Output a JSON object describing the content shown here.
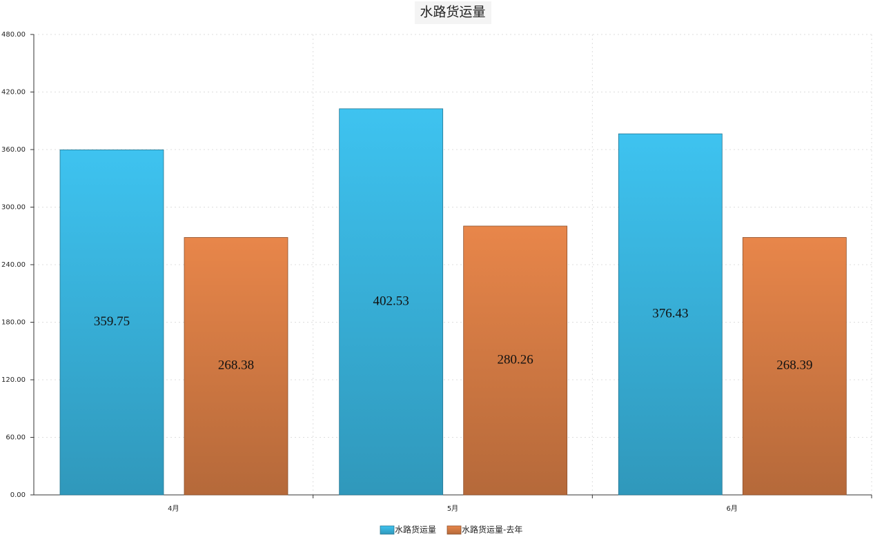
{
  "chart_data": {
    "type": "bar",
    "title": "水路货运量",
    "categories": [
      "4月",
      "5月",
      "6月"
    ],
    "series": [
      {
        "name": "水路货运量",
        "color": "#3ec3f0",
        "values": [
          359.75,
          402.53,
          376.43
        ]
      },
      {
        "name": "水路货运量-去年",
        "color": "#e8864a",
        "values": [
          268.38,
          280.26,
          268.39
        ]
      }
    ],
    "ylim": [
      0,
      480
    ],
    "yticks": [
      {
        "value": 0,
        "label": "0.00"
      },
      {
        "value": 60,
        "label": "60.00"
      },
      {
        "value": 120,
        "label": "120.00"
      },
      {
        "value": 180,
        "label": "180.00"
      },
      {
        "value": 240,
        "label": "240.00"
      },
      {
        "value": 300,
        "label": "300.00"
      },
      {
        "value": 360,
        "label": "360.00"
      },
      {
        "value": 420,
        "label": "420.00"
      },
      {
        "value": 480,
        "label": "480.00"
      }
    ],
    "grid": true,
    "legend": "bottom"
  }
}
